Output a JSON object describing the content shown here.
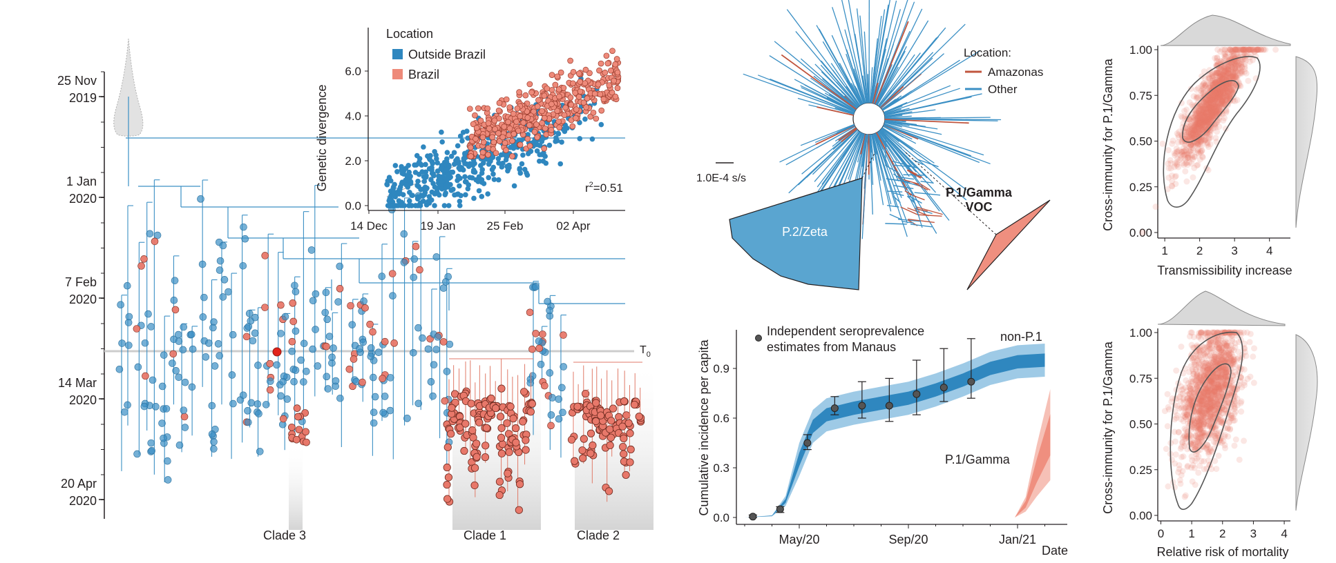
{
  "colors": {
    "blue": "#3a8fc4",
    "blue_dark": "#2f7fb5",
    "red": "#e8786a",
    "red_dark": "#c0553e",
    "grey": "#d9d9d9",
    "tree_red": "#e07a68",
    "zeta_fill": "#5aa5d0",
    "gamma_fill": "#ef8f7f"
  },
  "chart_data": [
    {
      "id": "phylogeny",
      "type": "tree",
      "title": "",
      "yaxis_ticks": [
        {
          "label": "25 Nov\n2019",
          "line1": "25 Nov",
          "line2": "2019"
        },
        {
          "label": "1 Jan\n2020",
          "line1": "1 Jan",
          "line2": "2020"
        },
        {
          "label": "7 Feb\n2020",
          "line1": "7 Feb",
          "line2": "2020"
        },
        {
          "label": "14 Mar\n2020",
          "line1": "14 Mar",
          "line2": "2020"
        },
        {
          "label": "20 Apr\n2020",
          "line1": "20 Apr",
          "line2": "2020"
        }
      ],
      "t0_label": "T",
      "t0_sub": "0",
      "clades": [
        "Clade 3",
        "Clade 1",
        "Clade 2"
      ],
      "legend": [
        "Outside Brazil",
        "Brazil"
      ]
    },
    {
      "id": "root-to-tip",
      "type": "scatter",
      "xlabel": "",
      "ylabel": "Genetic divergence",
      "xticks": [
        "14 Dec",
        "19 Jan",
        "25 Feb",
        "02 Apr"
      ],
      "yticks": [
        "0.0",
        "2.0",
        "4.0",
        "6.0"
      ],
      "ylim": [
        0,
        7
      ],
      "legend_title": "Location",
      "legend": [
        {
          "label": "Outside Brazil",
          "color": "#2f87bf"
        },
        {
          "label": "Brazil",
          "color": "#ee8a7a"
        }
      ],
      "annotation": "r²=0.51",
      "annotation_main": "r",
      "annotation_sup": "2",
      "annotation_rest": "=0.51",
      "series": [
        {
          "name": "Outside Brazil",
          "approx_x_days_from_14Dec": [
            35,
            112
          ],
          "approx_y_range": [
            0,
            5.5
          ]
        },
        {
          "name": "Brazil",
          "approx_x_days_from_14Dec": [
            75,
            120
          ],
          "approx_y_range": [
            2.2,
            7
          ]
        }
      ]
    },
    {
      "id": "radial-tree",
      "type": "tree",
      "legend_title": "Location:",
      "legend": [
        {
          "label": "Amazonas",
          "color": "#c0553e"
        },
        {
          "label": "Other",
          "color": "#3a8fc4"
        }
      ],
      "scale_bar": "1.0E-4 s/s",
      "collapsed_clades": [
        {
          "label": "P.2/Zeta",
          "color": "#5aa5d0"
        },
        {
          "label": "P.1/Gamma\nVOC",
          "line1": "P.1/Gamma",
          "line2": "VOC",
          "color": "#ef8f7f"
        }
      ]
    },
    {
      "id": "cumulative-incidence",
      "type": "area",
      "xlabel": "Date",
      "ylabel": "Cumulative incidence per capita",
      "xticks": [
        "May/20",
        "Sep/20",
        "Jan/21"
      ],
      "yticks": [
        "0.0",
        "0.3",
        "0.6",
        "0.9"
      ],
      "ylim": [
        0,
        1.05
      ],
      "legend": [
        "Independent seroprevalence estimates from Manaus"
      ],
      "legend_line1": "Independent seroprevalence",
      "legend_line2": "estimates from Manaus",
      "series_labels": [
        "non-P.1",
        "P.1/Gamma"
      ],
      "seroprevalence": {
        "x_months_from_Mar20": [
          0.3,
          1.3,
          2.3,
          3.3,
          4.3,
          5.3,
          6.3,
          7.3,
          8.3
        ],
        "y": [
          0.005,
          0.05,
          0.45,
          0.66,
          0.675,
          0.675,
          0.745,
          0.785,
          0.82
        ],
        "lo": [
          0.0,
          0.03,
          0.41,
          0.62,
          0.6,
          0.58,
          0.62,
          0.7,
          0.72
        ],
        "hi": [
          0.015,
          0.065,
          0.5,
          0.73,
          0.82,
          0.84,
          0.95,
          1.02,
          1.08
        ]
      },
      "non_p1_median": {
        "x_months_from_Mar20": [
          0,
          1,
          1.5,
          2,
          2.5,
          3,
          4,
          5,
          6,
          7,
          8,
          9,
          10,
          11
        ],
        "y": [
          0,
          0.01,
          0.1,
          0.35,
          0.55,
          0.62,
          0.66,
          0.69,
          0.72,
          0.77,
          0.83,
          0.9,
          0.94,
          0.95
        ]
      },
      "p1_median": {
        "x_months_from_Mar20": [
          9.9,
          10.3,
          10.7,
          11.2
        ],
        "y": [
          0,
          0.08,
          0.28,
          0.5
        ]
      }
    },
    {
      "id": "transmissibility-joint",
      "type": "scatter",
      "xlabel": "Transmissibility increase",
      "ylabel": "Cross-immunity for P.1/Gamma",
      "xticks": [
        "1",
        "2",
        "3",
        "4"
      ],
      "yticks": [
        "0.00",
        "0.25",
        "0.50",
        "0.75",
        "1.00"
      ],
      "xlim": [
        0.8,
        4.6
      ],
      "ylim": [
        0,
        1
      ]
    },
    {
      "id": "mortality-joint",
      "type": "scatter",
      "xlabel": "Relative risk of mortality",
      "ylabel": "Cross-immunity for P.1/Gamma",
      "xticks": [
        "0",
        "1",
        "2",
        "3",
        "4"
      ],
      "yticks": [
        "0.00",
        "0.25",
        "0.50",
        "0.75",
        "1.00"
      ],
      "xlim": [
        -0.1,
        4.2
      ],
      "ylim": [
        0,
        1
      ]
    }
  ]
}
